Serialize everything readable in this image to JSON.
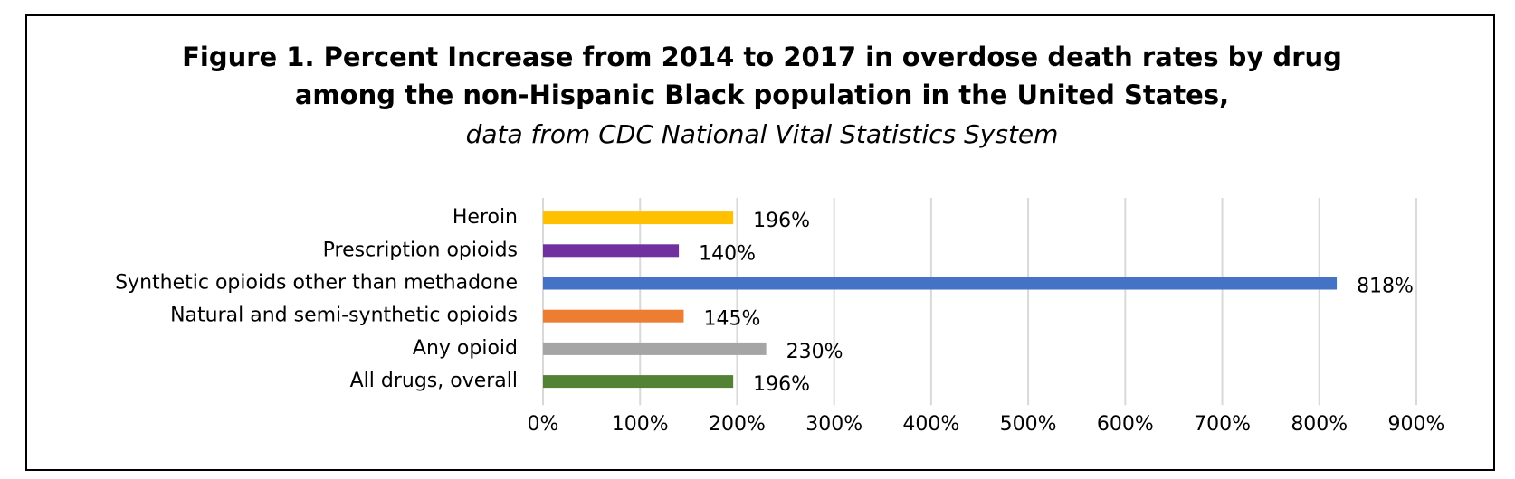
{
  "chart_data": {
    "type": "bar",
    "orientation": "horizontal",
    "title_line1": "Figure 1. Percent Increase from 2014 to 2017 in overdose death rates by drug",
    "title_line2": "among the non-Hispanic Black population in the United States,",
    "subtitle": "data from CDC National Vital Statistics System",
    "categories": [
      "Heroin",
      "Prescription opioids",
      "Synthetic opioids other than methadone",
      "Natural and semi-synthetic opioids",
      "Any opioid",
      "All drugs, overall"
    ],
    "values": [
      196,
      140,
      818,
      145,
      230,
      196
    ],
    "data_labels": [
      "196%",
      "140%",
      "818%",
      "145%",
      "230%",
      "196%"
    ],
    "colors": [
      "#FFC000",
      "#7030A0",
      "#4472C4",
      "#ED7D31",
      "#A5A5A5",
      "#548235"
    ],
    "xlim": [
      0,
      900
    ],
    "xticks": [
      0,
      100,
      200,
      300,
      400,
      500,
      600,
      700,
      800,
      900
    ],
    "xtick_labels": [
      "0%",
      "100%",
      "200%",
      "300%",
      "400%",
      "500%",
      "600%",
      "700%",
      "800%",
      "900%"
    ],
    "gridlines": "vertical",
    "legend": "none",
    "xlabel": "",
    "ylabel": ""
  }
}
